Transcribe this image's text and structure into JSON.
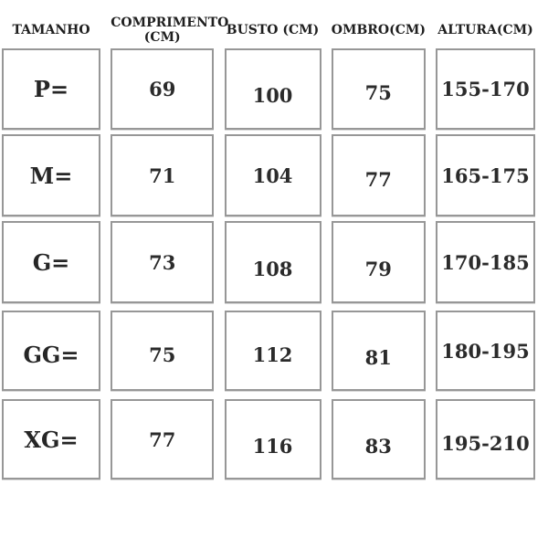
{
  "chart_data": {
    "type": "table",
    "columns": [
      "TAMANHO",
      "COMPRIMENTO (CM)",
      "BUSTO (CM)",
      "OMBRO(CM)",
      "ALTURA(CM)"
    ],
    "rows": [
      [
        "P=",
        "69",
        "100",
        "75",
        "155-170"
      ],
      [
        "M=",
        "71",
        "104",
        "77",
        "165-175"
      ],
      [
        "G=",
        "73",
        "108",
        "79",
        "170-185"
      ],
      [
        "GG=",
        "75",
        "112",
        "81",
        "180-195"
      ],
      [
        "XG=",
        "77",
        "116",
        "83",
        "195-210"
      ]
    ]
  },
  "colors": {
    "border": "#979797",
    "text": "#2b2b2b",
    "background": "#ffffff"
  }
}
